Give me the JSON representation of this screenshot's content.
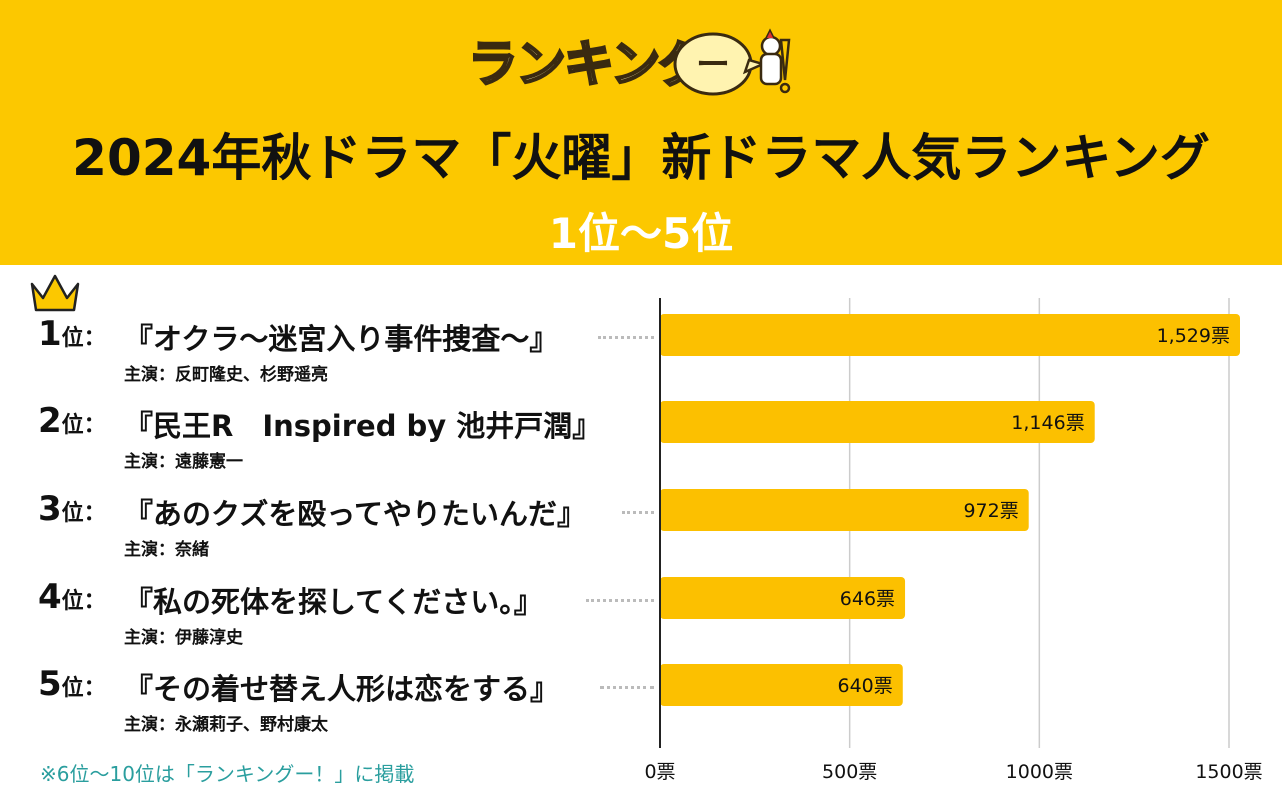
{
  "header": {
    "logo_text": "ランキング",
    "logo_suffix": "ー",
    "title": "2024年秋ドラマ「火曜」新ドラマ人気ランキング",
    "subtitle": "1位〜5位"
  },
  "rankings": [
    {
      "rank": "1",
      "rank_suffix": "位：",
      "title": "『オクラ〜迷宮入り事件捜査〜』",
      "cast": "主演：反町隆史、杉野遥亮"
    },
    {
      "rank": "2",
      "rank_suffix": "位：",
      "title": "『民王R　Inspired by 池井戸潤』",
      "cast": "主演：遠藤憲一"
    },
    {
      "rank": "3",
      "rank_suffix": "位：",
      "title": "『あのクズを殴ってやりたいんだ』",
      "cast": "主演：奈緒"
    },
    {
      "rank": "4",
      "rank_suffix": "位：",
      "title": "『私の死体を探してください。』",
      "cast": "主演：伊藤淳史"
    },
    {
      "rank": "5",
      "rank_suffix": "位：",
      "title": "『その着せ替え人形は恋をする』",
      "cast": "主演：永瀬莉子、野村康太"
    }
  ],
  "footnote": "※6位〜10位は「ランキングー！」に掲載",
  "colors": {
    "header_bg": "#fcc800",
    "bar": "#fcc000",
    "grid": "#cccccc",
    "axis": "#222222",
    "footnote": "#2a9e9e"
  },
  "chart_data": {
    "type": "bar",
    "orientation": "horizontal",
    "categories": [
      "『オクラ〜迷宮入り事件捜査〜』",
      "『民王R　Inspired by 池井戸潤』",
      "『あのクズを殴ってやりたいんだ』",
      "『私の死体を探してください。』",
      "『その着せ替え人形は恋をする』"
    ],
    "values": [
      1529,
      1146,
      972,
      646,
      640
    ],
    "value_labels": [
      "1,529票",
      "1,146票",
      "972票",
      "646票",
      "640票"
    ],
    "xlim": [
      0,
      1500
    ],
    "xticks": [
      0,
      500,
      1000,
      1500
    ],
    "xtick_labels": [
      "0票",
      "500票",
      "1000票",
      "1500票"
    ],
    "grid": true
  }
}
